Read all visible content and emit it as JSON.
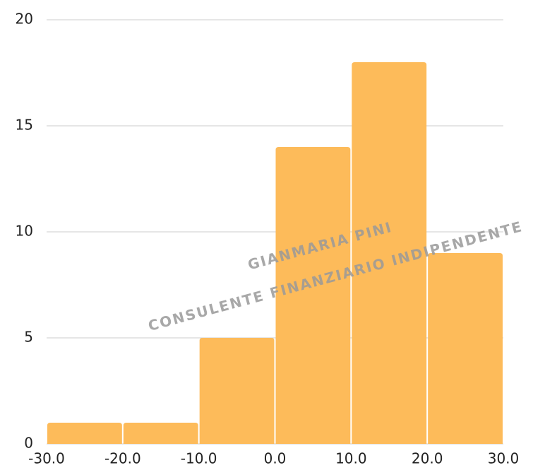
{
  "chart_data": {
    "type": "histogram",
    "bins": [
      -30,
      -20,
      -10,
      0,
      10,
      20,
      30
    ],
    "counts": [
      1,
      1,
      5,
      14,
      18,
      9
    ],
    "color": "#fdbb5a",
    "xlim": [
      -30,
      30
    ],
    "xticks": [
      {
        "value": -30,
        "label": "-30.0"
      },
      {
        "value": -20,
        "label": "-20.0"
      },
      {
        "value": -10,
        "label": "-10.0"
      },
      {
        "value": 0,
        "label": "0.0"
      },
      {
        "value": 10,
        "label": "10.0"
      },
      {
        "value": 20,
        "label": "20.0"
      },
      {
        "value": 30,
        "label": "30.0"
      }
    ],
    "ylim": [
      0,
      20
    ],
    "yticks": [
      0,
      5,
      10,
      15,
      20
    ],
    "grid": true,
    "annotations": [
      "GIANMARIA PINI",
      "CONSULENTE FINANZIARIO INDIPENDENTE"
    ]
  }
}
